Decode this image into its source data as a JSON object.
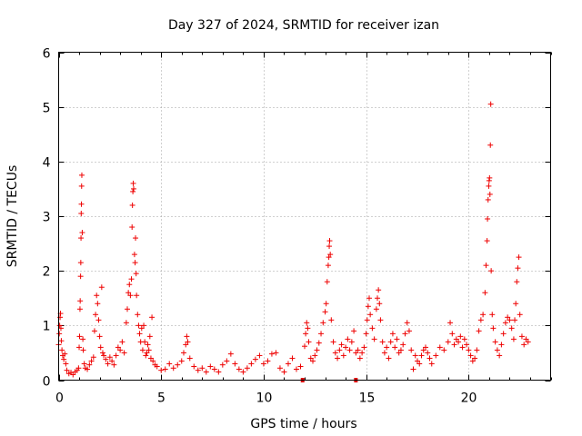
{
  "chart_data": {
    "type": "scatter",
    "title": "Day 327 of 2024, SRMTID for receiver izan",
    "xlabel": "GPS time / hours",
    "ylabel": "SRMTID / TECUs",
    "xlim": [
      0,
      24
    ],
    "ylim": [
      0,
      6
    ],
    "xticks": [
      0,
      5,
      10,
      15,
      20
    ],
    "yticks": [
      0,
      1,
      2,
      3,
      4,
      5,
      6
    ],
    "x_tick_labels": [
      "0",
      "5",
      "10",
      "15",
      "20"
    ],
    "y_tick_labels": [
      "0",
      "1",
      "2",
      "3",
      "4",
      "5",
      "6"
    ],
    "grid": true,
    "marker": "plus",
    "color": "#ee0000",
    "series": [
      {
        "name": "SRMTID",
        "points": [
          [
            0.0,
            0.65
          ],
          [
            0.03,
            0.85
          ],
          [
            0.05,
            1.0
          ],
          [
            0.07,
            1.15
          ],
          [
            0.09,
            1.22
          ],
          [
            0.11,
            0.95
          ],
          [
            0.13,
            0.72
          ],
          [
            0.16,
            0.55
          ],
          [
            0.2,
            0.45
          ],
          [
            0.25,
            0.38
          ],
          [
            0.3,
            0.48
          ],
          [
            0.35,
            0.3
          ],
          [
            0.4,
            0.18
          ],
          [
            0.5,
            0.12
          ],
          [
            0.6,
            0.14
          ],
          [
            0.7,
            0.1
          ],
          [
            0.8,
            0.15
          ],
          [
            0.9,
            0.18
          ],
          [
            0.97,
            0.22
          ],
          [
            1.0,
            0.6
          ],
          [
            1.02,
            0.8
          ],
          [
            1.04,
            1.3
          ],
          [
            1.05,
            1.45
          ],
          [
            1.07,
            1.9
          ],
          [
            1.08,
            2.15
          ],
          [
            1.09,
            2.6
          ],
          [
            1.1,
            3.05
          ],
          [
            1.11,
            3.22
          ],
          [
            1.12,
            3.55
          ],
          [
            1.13,
            3.75
          ],
          [
            1.15,
            2.7
          ],
          [
            1.18,
            0.75
          ],
          [
            1.2,
            0.55
          ],
          [
            1.25,
            0.3
          ],
          [
            1.3,
            0.22
          ],
          [
            1.4,
            0.2
          ],
          [
            1.5,
            0.28
          ],
          [
            1.6,
            0.35
          ],
          [
            1.7,
            0.42
          ],
          [
            1.75,
            0.9
          ],
          [
            1.8,
            1.2
          ],
          [
            1.85,
            1.55
          ],
          [
            1.9,
            1.4
          ],
          [
            1.95,
            1.1
          ],
          [
            2.0,
            0.8
          ],
          [
            2.05,
            0.6
          ],
          [
            2.1,
            1.7
          ],
          [
            2.15,
            0.5
          ],
          [
            2.2,
            0.45
          ],
          [
            2.3,
            0.38
          ],
          [
            2.4,
            0.3
          ],
          [
            2.5,
            0.42
          ],
          [
            2.6,
            0.35
          ],
          [
            2.7,
            0.28
          ],
          [
            2.8,
            0.45
          ],
          [
            2.9,
            0.6
          ],
          [
            3.0,
            0.55
          ],
          [
            3.1,
            0.7
          ],
          [
            3.2,
            0.5
          ],
          [
            3.3,
            1.05
          ],
          [
            3.35,
            1.3
          ],
          [
            3.4,
            1.6
          ],
          [
            3.45,
            1.75
          ],
          [
            3.5,
            1.55
          ],
          [
            3.55,
            1.85
          ],
          [
            3.58,
            2.8
          ],
          [
            3.6,
            3.2
          ],
          [
            3.62,
            3.45
          ],
          [
            3.64,
            3.6
          ],
          [
            3.66,
            3.5
          ],
          [
            3.7,
            2.3
          ],
          [
            3.73,
            2.15
          ],
          [
            3.75,
            2.6
          ],
          [
            3.78,
            1.95
          ],
          [
            3.8,
            1.55
          ],
          [
            3.85,
            1.2
          ],
          [
            3.9,
            1.0
          ],
          [
            3.95,
            0.85
          ],
          [
            4.0,
            0.7
          ],
          [
            4.05,
            0.95
          ],
          [
            4.1,
            0.55
          ],
          [
            4.15,
            1.0
          ],
          [
            4.2,
            0.7
          ],
          [
            4.25,
            0.45
          ],
          [
            4.3,
            0.5
          ],
          [
            4.35,
            0.65
          ],
          [
            4.4,
            0.55
          ],
          [
            4.45,
            0.8
          ],
          [
            4.5,
            0.4
          ],
          [
            4.55,
            1.15
          ],
          [
            4.6,
            0.35
          ],
          [
            4.7,
            0.28
          ],
          [
            4.8,
            0.25
          ],
          [
            5.0,
            0.18
          ],
          [
            5.2,
            0.2
          ],
          [
            5.4,
            0.3
          ],
          [
            5.6,
            0.22
          ],
          [
            5.8,
            0.28
          ],
          [
            6.0,
            0.35
          ],
          [
            6.1,
            0.5
          ],
          [
            6.2,
            0.65
          ],
          [
            6.25,
            0.8
          ],
          [
            6.3,
            0.7
          ],
          [
            6.4,
            0.4
          ],
          [
            6.6,
            0.25
          ],
          [
            6.8,
            0.18
          ],
          [
            7.0,
            0.22
          ],
          [
            7.2,
            0.15
          ],
          [
            7.4,
            0.25
          ],
          [
            7.6,
            0.2
          ],
          [
            7.8,
            0.15
          ],
          [
            8.0,
            0.28
          ],
          [
            8.2,
            0.35
          ],
          [
            8.4,
            0.48
          ],
          [
            8.6,
            0.3
          ],
          [
            8.8,
            0.2
          ],
          [
            9.0,
            0.15
          ],
          [
            9.2,
            0.22
          ],
          [
            9.4,
            0.3
          ],
          [
            9.6,
            0.38
          ],
          [
            9.8,
            0.45
          ],
          [
            10.0,
            0.3
          ],
          [
            10.2,
            0.35
          ],
          [
            10.4,
            0.48
          ],
          [
            10.6,
            0.5
          ],
          [
            10.8,
            0.22
          ],
          [
            11.0,
            0.15
          ],
          [
            11.2,
            0.3
          ],
          [
            11.4,
            0.4
          ],
          [
            11.6,
            0.2
          ],
          [
            11.8,
            0.25
          ],
          [
            12.0,
            0.62
          ],
          [
            12.05,
            0.85
          ],
          [
            12.1,
            1.05
          ],
          [
            12.15,
            0.95
          ],
          [
            12.2,
            0.7
          ],
          [
            12.3,
            0.4
          ],
          [
            12.4,
            0.35
          ],
          [
            12.5,
            0.45
          ],
          [
            12.6,
            0.55
          ],
          [
            12.7,
            0.68
          ],
          [
            12.8,
            0.85
          ],
          [
            12.9,
            1.05
          ],
          [
            13.0,
            1.25
          ],
          [
            13.05,
            1.4
          ],
          [
            13.1,
            1.8
          ],
          [
            13.15,
            2.1
          ],
          [
            13.18,
            2.25
          ],
          [
            13.2,
            2.45
          ],
          [
            13.22,
            2.55
          ],
          [
            13.25,
            2.3
          ],
          [
            13.3,
            1.1
          ],
          [
            13.4,
            0.7
          ],
          [
            13.5,
            0.5
          ],
          [
            13.6,
            0.4
          ],
          [
            13.7,
            0.55
          ],
          [
            13.8,
            0.65
          ],
          [
            13.9,
            0.45
          ],
          [
            14.0,
            0.6
          ],
          [
            14.1,
            0.75
          ],
          [
            14.2,
            0.55
          ],
          [
            14.3,
            0.7
          ],
          [
            14.4,
            0.9
          ],
          [
            14.5,
            0.5
          ],
          [
            14.6,
            0.55
          ],
          [
            14.7,
            0.4
          ],
          [
            14.8,
            0.5
          ],
          [
            14.9,
            0.6
          ],
          [
            15.0,
            0.85
          ],
          [
            15.05,
            1.1
          ],
          [
            15.1,
            1.35
          ],
          [
            15.15,
            1.5
          ],
          [
            15.2,
            1.2
          ],
          [
            15.3,
            0.95
          ],
          [
            15.4,
            0.75
          ],
          [
            15.5,
            1.3
          ],
          [
            15.55,
            1.5
          ],
          [
            15.6,
            1.65
          ],
          [
            15.65,
            1.4
          ],
          [
            15.7,
            1.1
          ],
          [
            15.8,
            0.7
          ],
          [
            15.9,
            0.5
          ],
          [
            16.0,
            0.6
          ],
          [
            16.1,
            0.4
          ],
          [
            16.2,
            0.7
          ],
          [
            16.3,
            0.85
          ],
          [
            16.4,
            0.6
          ],
          [
            16.5,
            0.75
          ],
          [
            16.6,
            0.5
          ],
          [
            16.7,
            0.55
          ],
          [
            16.8,
            0.65
          ],
          [
            16.9,
            0.85
          ],
          [
            17.0,
            1.05
          ],
          [
            17.1,
            0.9
          ],
          [
            17.2,
            0.55
          ],
          [
            17.3,
            0.2
          ],
          [
            17.4,
            0.45
          ],
          [
            17.5,
            0.35
          ],
          [
            17.6,
            0.3
          ],
          [
            17.7,
            0.45
          ],
          [
            17.8,
            0.55
          ],
          [
            17.9,
            0.6
          ],
          [
            18.0,
            0.5
          ],
          [
            18.1,
            0.4
          ],
          [
            18.2,
            0.3
          ],
          [
            18.4,
            0.45
          ],
          [
            18.6,
            0.6
          ],
          [
            18.8,
            0.55
          ],
          [
            19.0,
            0.7
          ],
          [
            19.1,
            1.05
          ],
          [
            19.2,
            0.85
          ],
          [
            19.3,
            0.65
          ],
          [
            19.4,
            0.75
          ],
          [
            19.5,
            0.7
          ],
          [
            19.6,
            0.8
          ],
          [
            19.7,
            0.6
          ],
          [
            19.8,
            0.75
          ],
          [
            19.9,
            0.65
          ],
          [
            20.0,
            0.55
          ],
          [
            20.1,
            0.45
          ],
          [
            20.2,
            0.35
          ],
          [
            20.3,
            0.4
          ],
          [
            20.4,
            0.55
          ],
          [
            20.5,
            0.9
          ],
          [
            20.6,
            1.1
          ],
          [
            20.7,
            1.2
          ],
          [
            20.8,
            1.6
          ],
          [
            20.85,
            2.1
          ],
          [
            20.9,
            2.55
          ],
          [
            20.92,
            2.95
          ],
          [
            20.95,
            3.3
          ],
          [
            20.98,
            3.55
          ],
          [
            21.0,
            3.65
          ],
          [
            21.02,
            3.7
          ],
          [
            21.04,
            3.4
          ],
          [
            21.06,
            4.3
          ],
          [
            21.08,
            5.05
          ],
          [
            21.1,
            2.0
          ],
          [
            21.15,
            1.2
          ],
          [
            21.2,
            0.95
          ],
          [
            21.3,
            0.7
          ],
          [
            21.4,
            0.55
          ],
          [
            21.5,
            0.45
          ],
          [
            21.6,
            0.65
          ],
          [
            21.7,
            0.85
          ],
          [
            21.8,
            1.05
          ],
          [
            21.9,
            1.15
          ],
          [
            22.0,
            1.1
          ],
          [
            22.1,
            0.95
          ],
          [
            22.2,
            0.75
          ],
          [
            22.25,
            1.1
          ],
          [
            22.3,
            1.4
          ],
          [
            22.35,
            1.8
          ],
          [
            22.4,
            2.05
          ],
          [
            22.45,
            2.25
          ],
          [
            22.5,
            1.2
          ],
          [
            22.6,
            0.8
          ],
          [
            22.7,
            0.65
          ],
          [
            22.8,
            0.75
          ],
          [
            22.9,
            0.7
          ]
        ]
      }
    ],
    "square_markers": [
      [
        11.9,
        0.0
      ],
      [
        14.5,
        0.0
      ]
    ]
  }
}
